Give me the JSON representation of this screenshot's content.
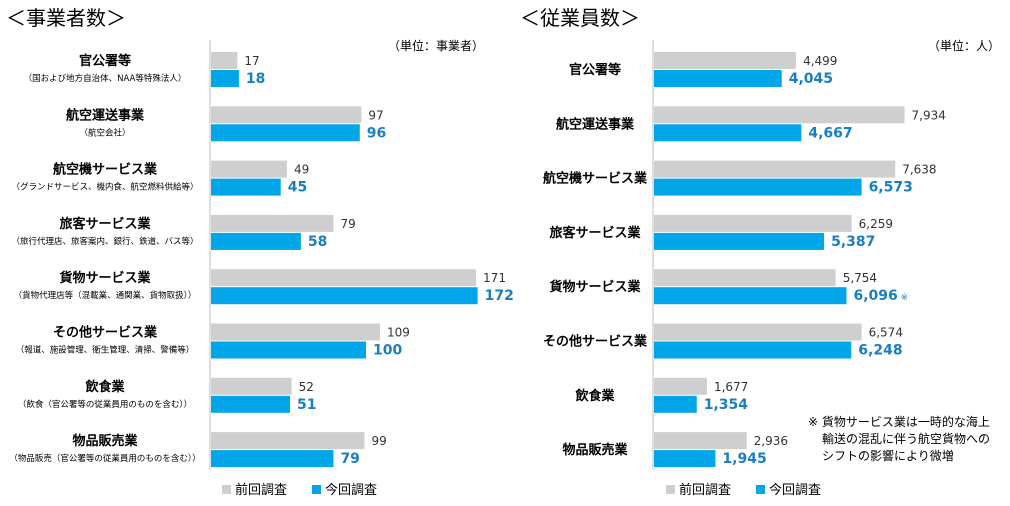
{
  "chart_data": [
    {
      "type": "bar",
      "title": "＜事業者数＞",
      "unit_label": "（単位：事業者）",
      "categories": [
        "官公署等",
        "航空運送事業",
        "航空機サービス業",
        "旅客サービス業",
        "貨物サービス業",
        "その他サービス業",
        "飲食業",
        "物品販売業"
      ],
      "category_notes": [
        "（国および地方自治体、NAA等特殊法人）",
        "（航空会社）",
        "（グランドサービス、機内食、航空燃料供給等）",
        "（旅行代理店、旅客案内、銀行、鉄道、バス等）",
        "（貨物代理店等（混載業、通関業、貨物取扱））",
        "（報道、施設管理、衛生管理、清掃、警備等）",
        "（飲食（官公署等の従業員用のものを含む））",
        "（物品販売（官公署等の従業員用のものを含む））"
      ],
      "series": [
        {
          "name": "前回調査",
          "values": [
            17,
            97,
            49,
            79,
            171,
            109,
            52,
            99
          ],
          "labels": [
            "17",
            "97",
            "49",
            "79",
            "171",
            "109",
            "52",
            "99"
          ]
        },
        {
          "name": "今回調査",
          "values": [
            18,
            96,
            45,
            58,
            172,
            100,
            51,
            79
          ],
          "labels": [
            "18",
            "96",
            "45",
            "58",
            "172",
            "100",
            "51",
            "79"
          ]
        }
      ],
      "xlim": [
        0,
        200
      ],
      "legend": "bottom"
    },
    {
      "type": "bar",
      "title": "＜従業員数＞",
      "unit_label": "（単位：人）",
      "categories": [
        "官公署等",
        "航空運送事業",
        "航空機サービス業",
        "旅客サービス業",
        "貨物サービス業",
        "その他サービス業",
        "飲食業",
        "物品販売業"
      ],
      "series": [
        {
          "name": "前回調査",
          "values": [
            4499,
            7934,
            7638,
            6259,
            5754,
            6574,
            1677,
            2936
          ],
          "labels": [
            "4,499",
            "7,934",
            "7,638",
            "6,259",
            "5,754",
            "6,574",
            "1,677",
            "2,936"
          ]
        },
        {
          "name": "今回調査",
          "values": [
            4045,
            4667,
            6573,
            5387,
            6096,
            6248,
            1354,
            1945
          ],
          "labels": [
            "4,045",
            "4,667",
            "6,573",
            "5,387",
            "6,096",
            "6,248",
            "1,354",
            "1,945"
          ]
        }
      ],
      "xlim": [
        0,
        9500
      ],
      "legend": "bottom",
      "marked_category_index": 4,
      "mark_symbol": "※",
      "note_lines": [
        "※ 貨物サービス業は一時的な海上",
        "輸送の混乱に伴う航空貨物への",
        "シフトの影響により微増"
      ]
    }
  ],
  "colors": {
    "prev": "#cfcfcf",
    "curr": "#00a6e8",
    "curr_text": "#1a7fc1",
    "axis": "#bfbfbf"
  }
}
